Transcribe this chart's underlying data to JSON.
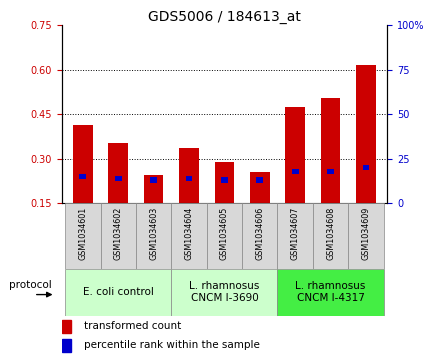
{
  "title": "GDS5006 / 184613_at",
  "samples": [
    "GSM1034601",
    "GSM1034602",
    "GSM1034603",
    "GSM1034604",
    "GSM1034605",
    "GSM1034606",
    "GSM1034607",
    "GSM1034608",
    "GSM1034609"
  ],
  "transformed_count": [
    0.415,
    0.355,
    0.245,
    0.335,
    0.29,
    0.255,
    0.475,
    0.505,
    0.615
  ],
  "percentile_rank": [
    15,
    14,
    13,
    14,
    13,
    13,
    18,
    18,
    20
  ],
  "ylim_left": [
    0.15,
    0.75
  ],
  "yticks_left": [
    0.15,
    0.3,
    0.45,
    0.6,
    0.75
  ],
  "ylim_right": [
    0,
    100
  ],
  "yticks_right": [
    0,
    25,
    50,
    75,
    100
  ],
  "bar_color": "#cc0000",
  "marker_color": "#0000cc",
  "bar_bottom": 0.15,
  "groups": [
    {
      "label": "E. coli control",
      "start": 0,
      "end": 3
    },
    {
      "label": "L. rhamnosus\nCNCM I-3690",
      "start": 3,
      "end": 6
    },
    {
      "label": "L. rhamnosus\nCNCM I-4317",
      "start": 6,
      "end": 9
    }
  ],
  "group_colors": [
    "#ccffcc",
    "#ccffcc",
    "#44ee44"
  ],
  "sample_box_color": "#d8d8d8",
  "title_fontsize": 10,
  "tick_fontsize": 7,
  "label_fontsize": 7.5,
  "group_fontsize": 7.5
}
